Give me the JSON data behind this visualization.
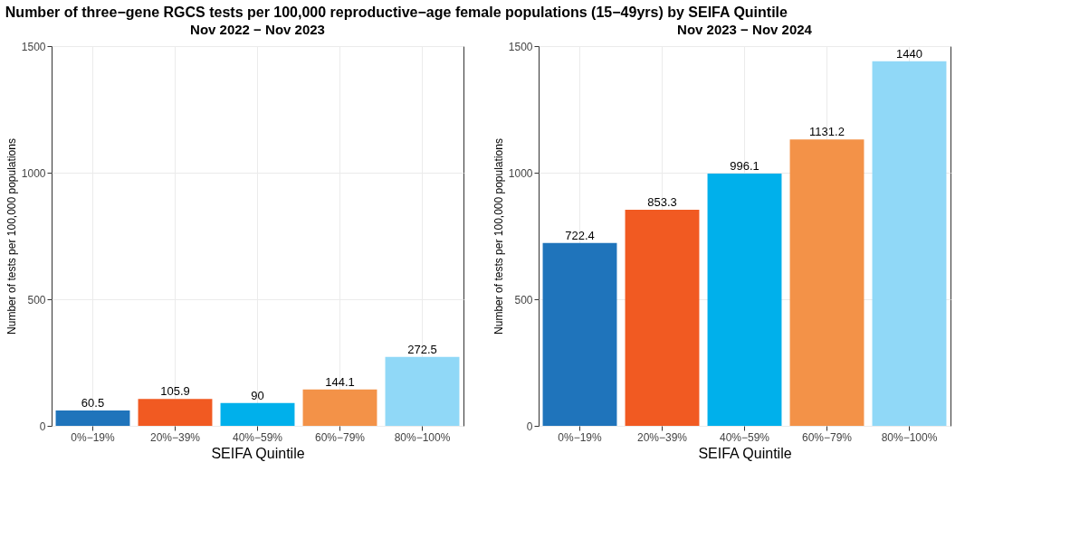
{
  "chart_data": [
    {
      "type": "bar",
      "title": "Number of three−gene RGCS tests per 100,000 reproductive−age female populations (15−49yrs) by SEIFA Quintile",
      "subtitle": "Nov 2022 − Nov 2023",
      "xlabel": "SEIFA Quintile",
      "ylabel": "Number of tests per 100,000 populations",
      "categories": [
        "0%−19%",
        "20%−39%",
        "40%−59%",
        "60%−79%",
        "80%−100%"
      ],
      "values": [
        60.5,
        105.9,
        90,
        144.1,
        272.5
      ],
      "colors": [
        "#1f74bb",
        "#f15a22",
        "#00b0eb",
        "#f39248",
        "#90d8f7"
      ],
      "ylim": [
        0,
        1500
      ],
      "yticks": [
        0,
        500,
        1000,
        1500
      ],
      "grid": true,
      "data_labels": true
    },
    {
      "type": "bar",
      "subtitle": "Nov 2023 − Nov 2024",
      "xlabel": "SEIFA Quintile",
      "ylabel": "Number of tests per 100,000 populations",
      "categories": [
        "0%−19%",
        "20%−39%",
        "40%−59%",
        "60%−79%",
        "80%−100%"
      ],
      "values": [
        722.4,
        853.3,
        996.1,
        1131.2,
        1440
      ],
      "colors": [
        "#1f74bb",
        "#f15a22",
        "#00b0eb",
        "#f39248",
        "#90d8f7"
      ],
      "ylim": [
        0,
        1500
      ],
      "yticks": [
        0,
        500,
        1000,
        1500
      ],
      "grid": true,
      "data_labels": true
    }
  ]
}
